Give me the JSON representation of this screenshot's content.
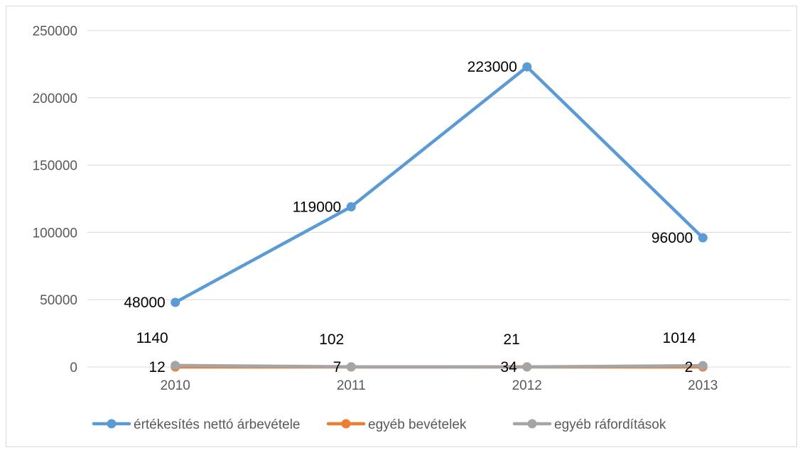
{
  "chart_data": {
    "type": "line",
    "title": "",
    "xlabel": "",
    "ylabel": "",
    "categories": [
      "2010",
      "2011",
      "2012",
      "2013"
    ],
    "ylim": [
      0,
      250000
    ],
    "yticks": [
      0,
      50000,
      100000,
      150000,
      200000,
      250000
    ],
    "yticks_text": [
      "0",
      "50000",
      "100000",
      "150000",
      "200000",
      "250000"
    ],
    "grid": true,
    "legend_position": "bottom",
    "series": [
      {
        "name": "értékesítés nettó árbevétele",
        "color": "#5b9bd5",
        "values": [
          48000,
          119000,
          223000,
          96000
        ],
        "labels": [
          "48000",
          "119000",
          "223000",
          "96000"
        ],
        "label_position": "left"
      },
      {
        "name": "egyéb bevételek",
        "color": "#ed7d31",
        "values": [
          12,
          7,
          34,
          2
        ],
        "labels": [
          "12",
          "7",
          "34",
          "2"
        ],
        "label_position": "left"
      },
      {
        "name": "egyéb ráfordítások",
        "color": "#a5a5a5",
        "values": [
          1140,
          102,
          21,
          1014
        ],
        "labels": [
          "1140",
          "102",
          "21",
          "1014"
        ],
        "label_position": "above-left"
      }
    ]
  }
}
